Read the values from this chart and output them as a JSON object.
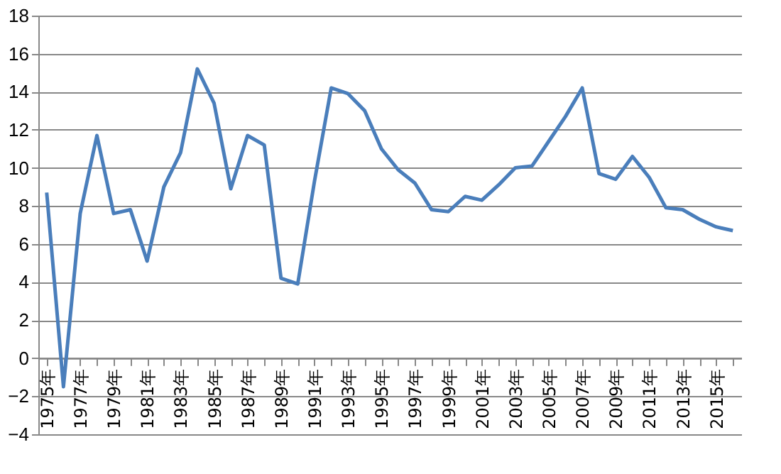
{
  "chart_data": {
    "type": "line",
    "categories": [
      "1975年",
      null,
      "1977年",
      null,
      "1979年",
      null,
      "1981年",
      null,
      "1983年",
      null,
      "1985年",
      null,
      "1987年",
      null,
      "1989年",
      null,
      "1991年",
      null,
      "1993年",
      null,
      "1995年",
      null,
      "1997年",
      null,
      "1999年",
      null,
      "2001年",
      null,
      "2003年",
      null,
      "2005年",
      null,
      "2007年",
      null,
      "2009年",
      null,
      "2011年",
      null,
      "2013年",
      null,
      "2015年",
      null
    ],
    "series": [
      {
        "color": "#4a7ebb",
        "values": [
          8.7,
          -1.5,
          7.6,
          11.7,
          7.6,
          7.8,
          5.1,
          9.0,
          10.8,
          15.2,
          13.4,
          8.9,
          11.7,
          11.2,
          4.2,
          3.9,
          9.3,
          14.2,
          13.9,
          13.0,
          11.0,
          9.9,
          9.2,
          7.8,
          7.7,
          8.5,
          8.3,
          9.1,
          10.0,
          10.1,
          11.4,
          12.7,
          14.2,
          9.7,
          9.4,
          10.6,
          9.5,
          7.9,
          7.8,
          7.3,
          6.9,
          6.7
        ]
      }
    ],
    "ylim": [
      -4,
      18
    ],
    "yticks": [
      -4,
      -2,
      0,
      2,
      4,
      6,
      8,
      10,
      12,
      14,
      16,
      18
    ],
    "grid": "y",
    "marker": "none",
    "line_style": "solid"
  }
}
